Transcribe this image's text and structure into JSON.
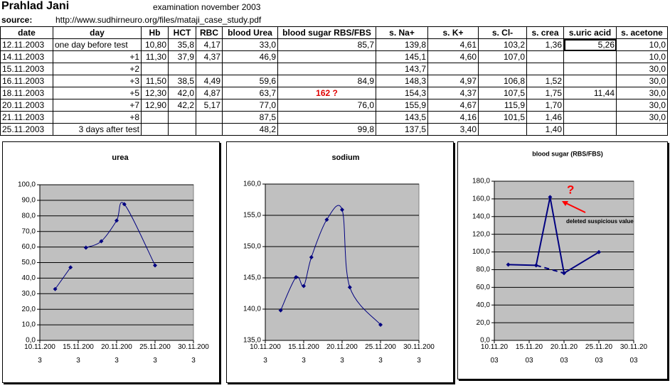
{
  "sheet": {
    "title": "Prahlad Jani",
    "exam": "examination november 2003",
    "source_label": "source:",
    "source_url": "http://www.sudhirneuro.org/files/mataji_case_study.pdf",
    "headers": [
      "date",
      "day",
      "Hb",
      "HCT",
      "RBC",
      "blood Urea",
      "blood sugar RBS/FBS",
      "s. Na+",
      "s. K+",
      "s. Cl-",
      "s. crea",
      "s.uric acid",
      "s. acetone"
    ],
    "rows": [
      [
        "12.11.2003",
        "one day before test",
        "10,80",
        "35,8",
        "4,17",
        "33,0",
        "85,7",
        "139,8",
        "4,61",
        "103,2",
        "1,36",
        "5,26",
        "10,0"
      ],
      [
        "14.11.2003",
        "+1",
        "11,30",
        "37,9",
        "4,37",
        "46,9",
        null,
        "145,1",
        "4,60",
        "107,0",
        null,
        null,
        "10,0"
      ],
      [
        "15.11.2003",
        "+2",
        null,
        null,
        null,
        null,
        null,
        "143,7",
        null,
        null,
        null,
        null,
        "30,0"
      ],
      [
        "16.11.2003",
        "+3",
        "11,50",
        "38,5",
        "4,49",
        "59,6",
        "84,9",
        "148,3",
        "4,97",
        "106,8",
        "1,52",
        null,
        "30,0"
      ],
      [
        "18.11.2003",
        "+5",
        "12,30",
        "42,0",
        "4,87",
        "63,7",
        "162 ?",
        "154,3",
        "4,37",
        "107,5",
        "1,75",
        "11,44",
        "30,0"
      ],
      [
        "20.11.2003",
        "+7",
        "12,90",
        "42,2",
        "5,17",
        "77,0",
        "76,0",
        "155,9",
        "4,67",
        "115,9",
        "1,70",
        null,
        "30,0"
      ],
      [
        "21.11.2003",
        "+8",
        null,
        null,
        null,
        "87,5",
        null,
        "143,5",
        "4,16",
        "101,5",
        "1,46",
        null,
        "30,0"
      ],
      [
        "25.11.2003",
        "3 days after test",
        null,
        null,
        null,
        "48,2",
        "99,8",
        "137,5",
        "3,40",
        null,
        "1,40",
        null,
        null
      ]
    ]
  },
  "chart_data": [
    {
      "type": "line",
      "title": "urea",
      "smooth": true,
      "grid": true,
      "plot_background": "#c0c0c0",
      "x": [
        "12.11.2003",
        "14.11.2003",
        "15.11.2003",
        "16.11.2003",
        "18.11.2003",
        "20.11.2003",
        "21.11.2003",
        "25.11.2003"
      ],
      "xlim": [
        "10.11.2003",
        "30.11.2003"
      ],
      "xticks": [
        "10.11.2003",
        "15.11.2003",
        "20.11.2003",
        "25.11.2003",
        "30.11.2003"
      ],
      "ylim": [
        0,
        100
      ],
      "yticks": [
        {
          "value": 0,
          "label": "0,0"
        },
        {
          "value": 10,
          "label": "10,0"
        },
        {
          "value": 20,
          "label": "20,0"
        },
        {
          "value": 30,
          "label": "30,0"
        },
        {
          "value": 40,
          "label": "40,0"
        },
        {
          "value": 50,
          "label": "50,0"
        },
        {
          "value": 60,
          "label": "60,0"
        },
        {
          "value": 70,
          "label": "70,0"
        },
        {
          "value": 80,
          "label": "80,0"
        },
        {
          "value": 90,
          "label": "90,0"
        },
        {
          "value": 100,
          "label": "100,0"
        }
      ],
      "series": [
        {
          "color": "#000080",
          "values": [
            33.0,
            46.9,
            null,
            59.6,
            63.7,
            77.0,
            87.5,
            48.2
          ]
        }
      ]
    },
    {
      "type": "line",
      "title": "sodium",
      "smooth": true,
      "grid": true,
      "plot_background": "#c0c0c0",
      "x": [
        "12.11.2003",
        "14.11.2003",
        "15.11.2003",
        "16.11.2003",
        "18.11.2003",
        "20.11.2003",
        "21.11.2003",
        "25.11.2003"
      ],
      "xlim": [
        "10.11.2003",
        "30.11.2003"
      ],
      "xticks": [
        "10.11.2003",
        "15.11.2003",
        "20.11.2003",
        "25.11.2003",
        "30.11.2003"
      ],
      "ylim": [
        135,
        160
      ],
      "yticks": [
        {
          "value": 135,
          "label": "135,0"
        },
        {
          "value": 140,
          "label": "140,0"
        },
        {
          "value": 145,
          "label": "145,0"
        },
        {
          "value": 150,
          "label": "150,0"
        },
        {
          "value": 155,
          "label": "155,0"
        },
        {
          "value": 160,
          "label": "160,0"
        }
      ],
      "series": [
        {
          "color": "#000080",
          "values": [
            139.8,
            145.1,
            143.7,
            148.3,
            154.3,
            155.9,
            143.5,
            137.5
          ]
        }
      ]
    },
    {
      "type": "line",
      "title": "blood sugar (RBS/FBS)",
      "smooth": false,
      "grid": true,
      "plot_background": "#c0c0c0",
      "xlim": [
        "10.11.2003",
        "30.11.2003"
      ],
      "xticks": [
        "10.11.2003",
        "15.11.2003",
        "20.11.2003",
        "25.11.2003",
        "30.11.2003"
      ],
      "ylim": [
        0,
        180
      ],
      "yticks": [
        {
          "value": 0,
          "label": "0,0"
        },
        {
          "value": 20,
          "label": "20,0"
        },
        {
          "value": 40,
          "label": "40,0"
        },
        {
          "value": 60,
          "label": "60,0"
        },
        {
          "value": 80,
          "label": "80,0"
        },
        {
          "value": 100,
          "label": "100,0"
        },
        {
          "value": 120,
          "label": "120,0"
        },
        {
          "value": 140,
          "label": "140,0"
        },
        {
          "value": 160,
          "label": "160,0"
        },
        {
          "value": 180,
          "label": "180,0"
        }
      ],
      "series": [
        {
          "color": "#000080",
          "x": [
            "12.11.2003",
            "16.11.2003",
            "18.11.2003",
            "20.11.2003",
            "25.11.2003"
          ],
          "values": [
            85.7,
            84.9,
            162,
            76.0,
            99.8
          ]
        },
        {
          "color": "#000080",
          "dashed": true,
          "x": [
            "16.11.2003",
            "20.11.2003"
          ],
          "values": [
            84.9,
            76.0
          ]
        }
      ],
      "annotations": [
        {
          "text": "?",
          "color": "#ff0000"
        },
        {
          "text": "deleted suspicious value",
          "color": "#000000"
        }
      ]
    }
  ]
}
